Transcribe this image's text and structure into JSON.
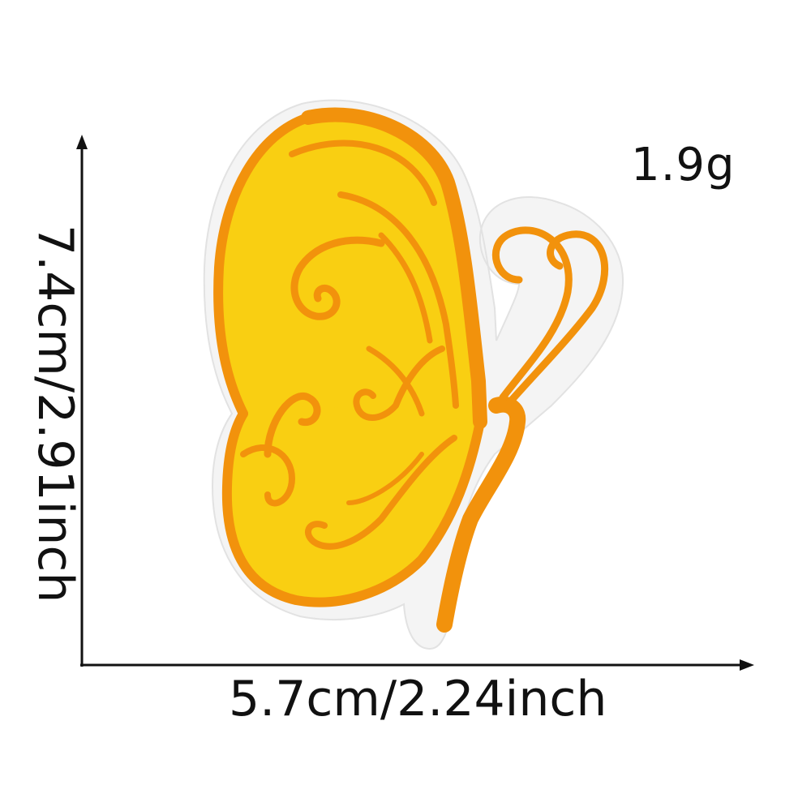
{
  "product": {
    "weight_label": "1.9g",
    "width_label": "5.7cm/2.24inch",
    "height_label": "7.4cm/2.91inch"
  },
  "colors": {
    "wing_fill": "#f9cf12",
    "wing_fill_light": "#fbe01a",
    "outline_orange": "#f2920c",
    "felt_backing": "#f4f4f4",
    "text": "#111111"
  },
  "icons": {
    "patch": "butterfly-patch-icon",
    "vertical_arrow": "arrow-up-icon",
    "horizontal_arrow": "arrow-right-icon"
  }
}
